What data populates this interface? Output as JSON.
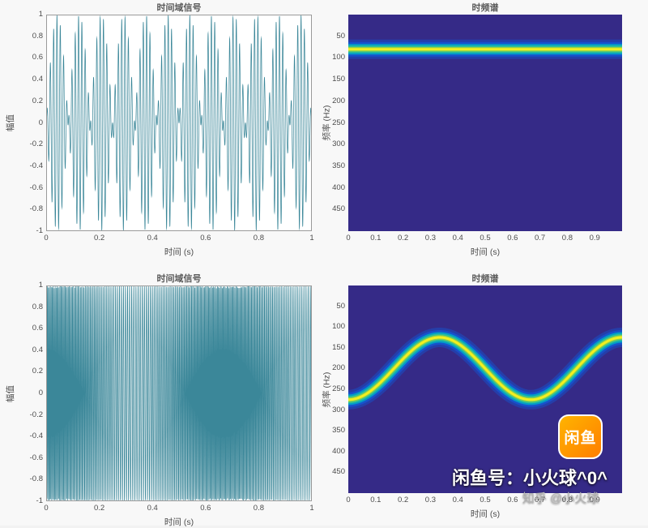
{
  "page": {
    "bg": "#f2f2f2",
    "text_color": "#4c4c4c"
  },
  "watermark": {
    "logo_label": "闲鱼",
    "logo_color": "#ff8a00",
    "line1": "闲鱼号：小火球^0^",
    "line2": "知乎 @小火球"
  },
  "chart_data": [
    {
      "id": "tl",
      "type": "line",
      "title": "时间域信号",
      "xlabel": "时间 (s)",
      "ylabel": "幅值",
      "xlim": [
        0,
        1
      ],
      "ylim": [
        -1,
        1
      ],
      "xticks": [
        "0",
        "0.2",
        "0.4",
        "0.6",
        "0.8",
        "1"
      ],
      "yticks": [
        "1",
        "0.8",
        "0.6",
        "0.4",
        "0.2",
        "0",
        "-0.2",
        "-0.4",
        "-0.6",
        "-0.8",
        "-1"
      ],
      "line_color": "#2a7d90",
      "signal": {
        "kind": "am",
        "carrier_hz": 80,
        "envelope_hz": 6,
        "amplitude": 1,
        "description": "80 Hz sine with ~6 Hz beat envelope over 1 s, amplitude ±1"
      }
    },
    {
      "id": "tr",
      "type": "heatmap",
      "title": "时频谱",
      "xlabel": "时间 (s)",
      "ylabel": "频率 (Hz)",
      "xlim": [
        0,
        1
      ],
      "freq_lim": [
        0,
        500
      ],
      "xticks": [
        "0",
        "0.1",
        "0.2",
        "0.3",
        "0.4",
        "0.5",
        "0.6",
        "0.7",
        "0.8",
        "0.9"
      ],
      "yticks": [
        "50",
        "100",
        "150",
        "200",
        "250",
        "300",
        "350",
        "400",
        "450"
      ],
      "bg_color": "#352a87",
      "colormap": [
        "#352a87",
        "#0f5cdd",
        "#00a4c6",
        "#2fbf96",
        "#8fcf4a",
        "#f2ef20"
      ],
      "ridge": {
        "kind": "constant",
        "freq_hz": 80,
        "description": "single constant-frequency tone near 80 Hz across 0–1 s"
      }
    },
    {
      "id": "bl",
      "type": "line",
      "title": "时间域信号",
      "xlabel": "时间 (s)",
      "ylabel": "幅值",
      "xlim": [
        0,
        1
      ],
      "ylim": [
        -1,
        1
      ],
      "xticks": [
        "0",
        "0.2",
        "0.4",
        "0.6",
        "0.8",
        "1"
      ],
      "yticks": [
        "1",
        "0.8",
        "0.6",
        "0.4",
        "0.2",
        "0",
        "-0.2",
        "-0.4",
        "-0.6",
        "-0.8",
        "-1"
      ],
      "line_color": "#2a7d90",
      "signal": {
        "kind": "fm",
        "center_hz": 200,
        "deviation_hz": 75,
        "mod_hz": 1.5,
        "amplitude": 1,
        "description": "frequency-modulated sine, instantaneous frequency 200 + 75·cos(2π·1.5·t) Hz"
      }
    },
    {
      "id": "br",
      "type": "heatmap",
      "title": "时频谱",
      "xlabel": "时间 (s)",
      "ylabel": "频率 (Hz)",
      "xlim": [
        0,
        1
      ],
      "freq_lim": [
        0,
        500
      ],
      "xticks": [
        "0",
        "0.1",
        "0.2",
        "0.3",
        "0.4",
        "0.5",
        "0.6",
        "0.7",
        "0.8",
        "0.9"
      ],
      "yticks": [
        "50",
        "100",
        "150",
        "200",
        "250",
        "300",
        "350",
        "400",
        "450"
      ],
      "bg_color": "#352a87",
      "colormap": [
        "#352a87",
        "#0f5cdd",
        "#00a4c6",
        "#2fbf96",
        "#8fcf4a",
        "#f2ef20"
      ],
      "ridge": {
        "kind": "sinusoid",
        "center_hz": 200,
        "deviation_hz": 75,
        "mod_hz": 1.5,
        "phase": "cosine",
        "description": "sinusoidal frequency track 200 + 75·cos(2π·1.5·t) Hz, min ≈125 Hz at t≈0.33, max ≈275 Hz at t≈0 and t≈0.67"
      }
    }
  ]
}
